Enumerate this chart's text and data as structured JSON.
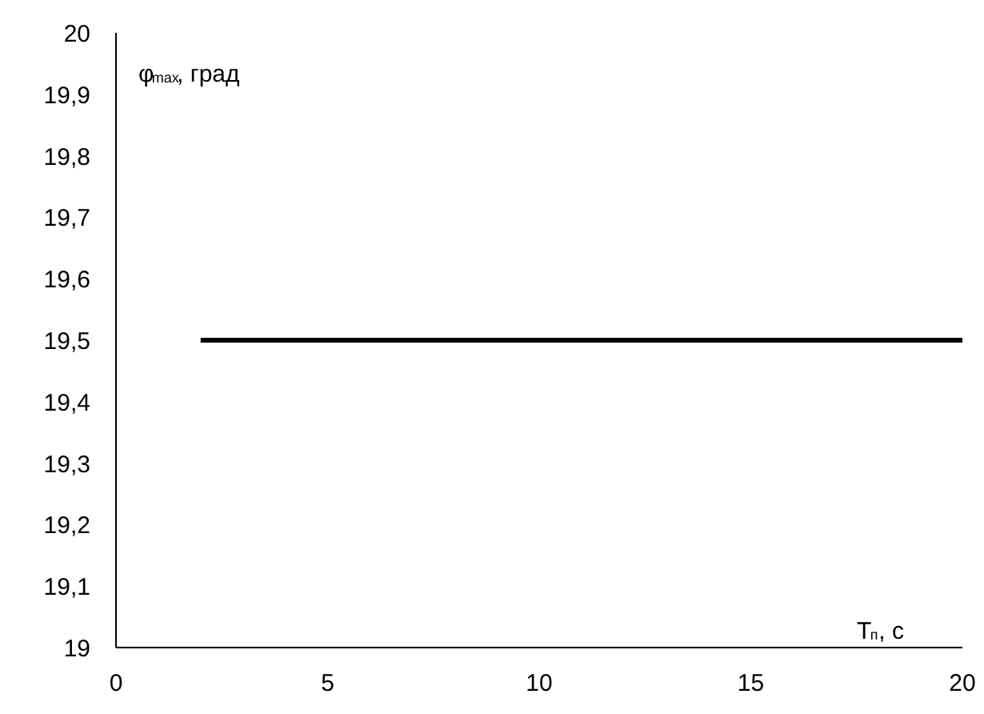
{
  "chart_data": {
    "type": "line",
    "xlabel": "T$_{п}$, с",
    "ylabel": "φ$_{max}$, град",
    "x": [
      2,
      20
    ],
    "series": [
      {
        "color": "#000000",
        "values": [
          19.5,
          19.5
        ]
      }
    ],
    "xlim": [
      0,
      20
    ],
    "ylim": [
      19,
      20
    ],
    "xticks": [
      0,
      5,
      10,
      15,
      20
    ],
    "yticks": [
      {
        "value": 19,
        "label": "19"
      },
      {
        "value": 19.1,
        "label": "19,1"
      },
      {
        "value": 19.2,
        "label": "19,2"
      },
      {
        "value": 19.3,
        "label": "19,3"
      },
      {
        "value": 19.4,
        "label": "19,4"
      },
      {
        "value": 19.5,
        "label": "19,5"
      },
      {
        "value": 19.6,
        "label": "19,6"
      },
      {
        "value": 19.7,
        "label": "19,7"
      },
      {
        "value": 19.8,
        "label": "19,8"
      },
      {
        "value": 19.9,
        "label": "19,9"
      },
      {
        "value": 20,
        "label": "20"
      }
    ],
    "grid": false,
    "marker": "none",
    "line_style": "solid"
  }
}
